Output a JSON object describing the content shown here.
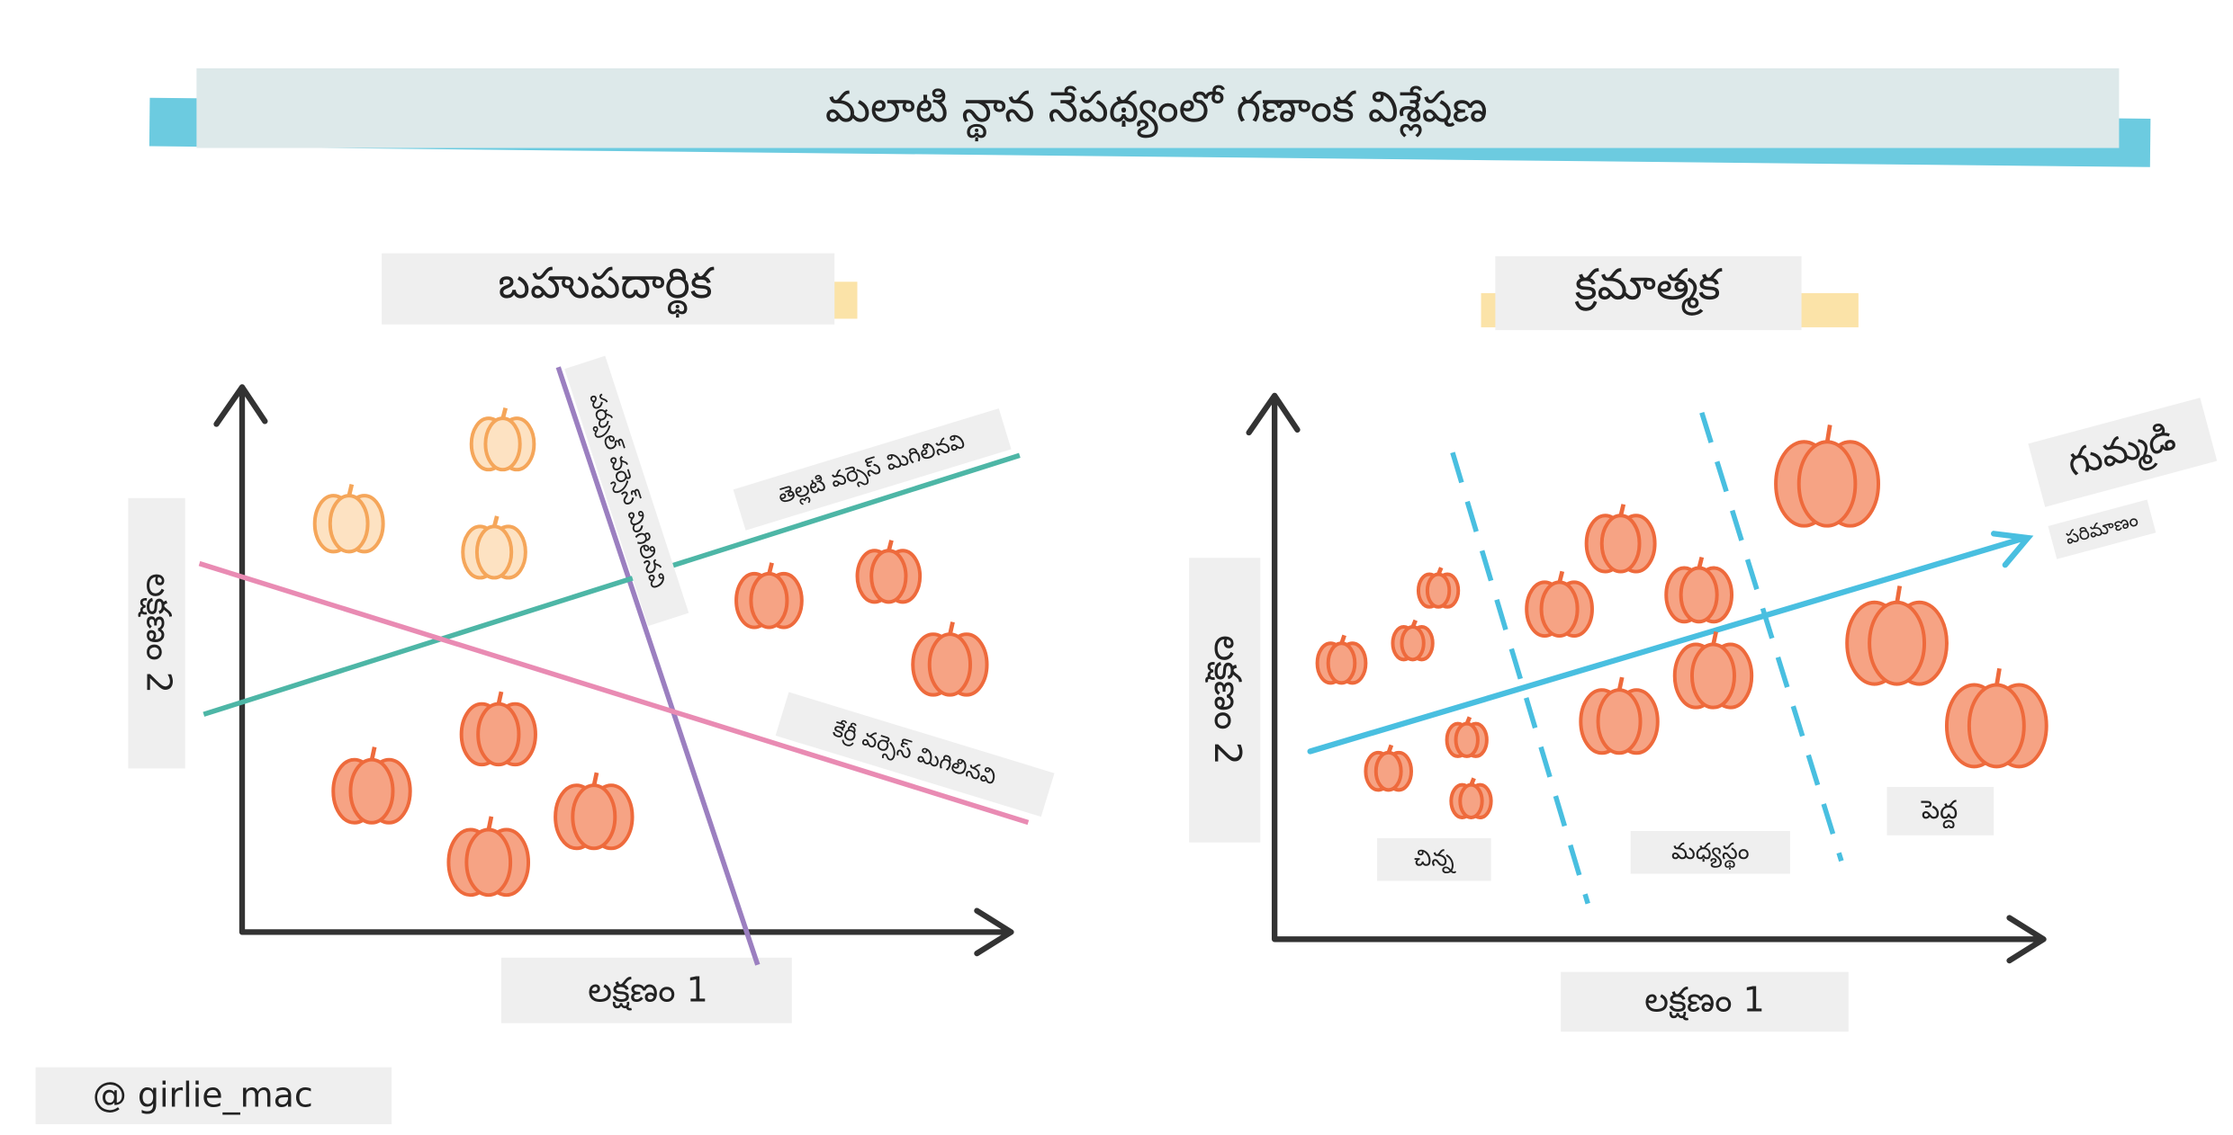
{
  "title": "మలాటి న్థాన నేపథ్యంలో గణాంక విశ్లేషణ",
  "panels": [
    {
      "title": "బహుపదార్థిక",
      "x_axis_label": "లక్షణం 1",
      "y_axis_label": "లక్షణం 2",
      "lines": [
        {
          "label": "పర్పుల్ వర్సెస్ మిగిలినవి"
        },
        {
          "label": "తెల్లటి వర్సెస్ మిగిలినవి"
        },
        {
          "label": "కేర్రీ వర్సెస్ మిగిలినవి"
        }
      ]
    },
    {
      "title": "క్రమాత్మక",
      "x_axis_label": "లక్షణం 1",
      "y_axis_label": "లక్షణం 2",
      "arrow_label": "గుమ్మడి",
      "arrow_sublabel": "పరిమాణం",
      "groups": [
        "చిన్న",
        "మధ్యస్థం",
        "పెద్ద"
      ]
    }
  ],
  "credit": "@ girlie_mac"
}
